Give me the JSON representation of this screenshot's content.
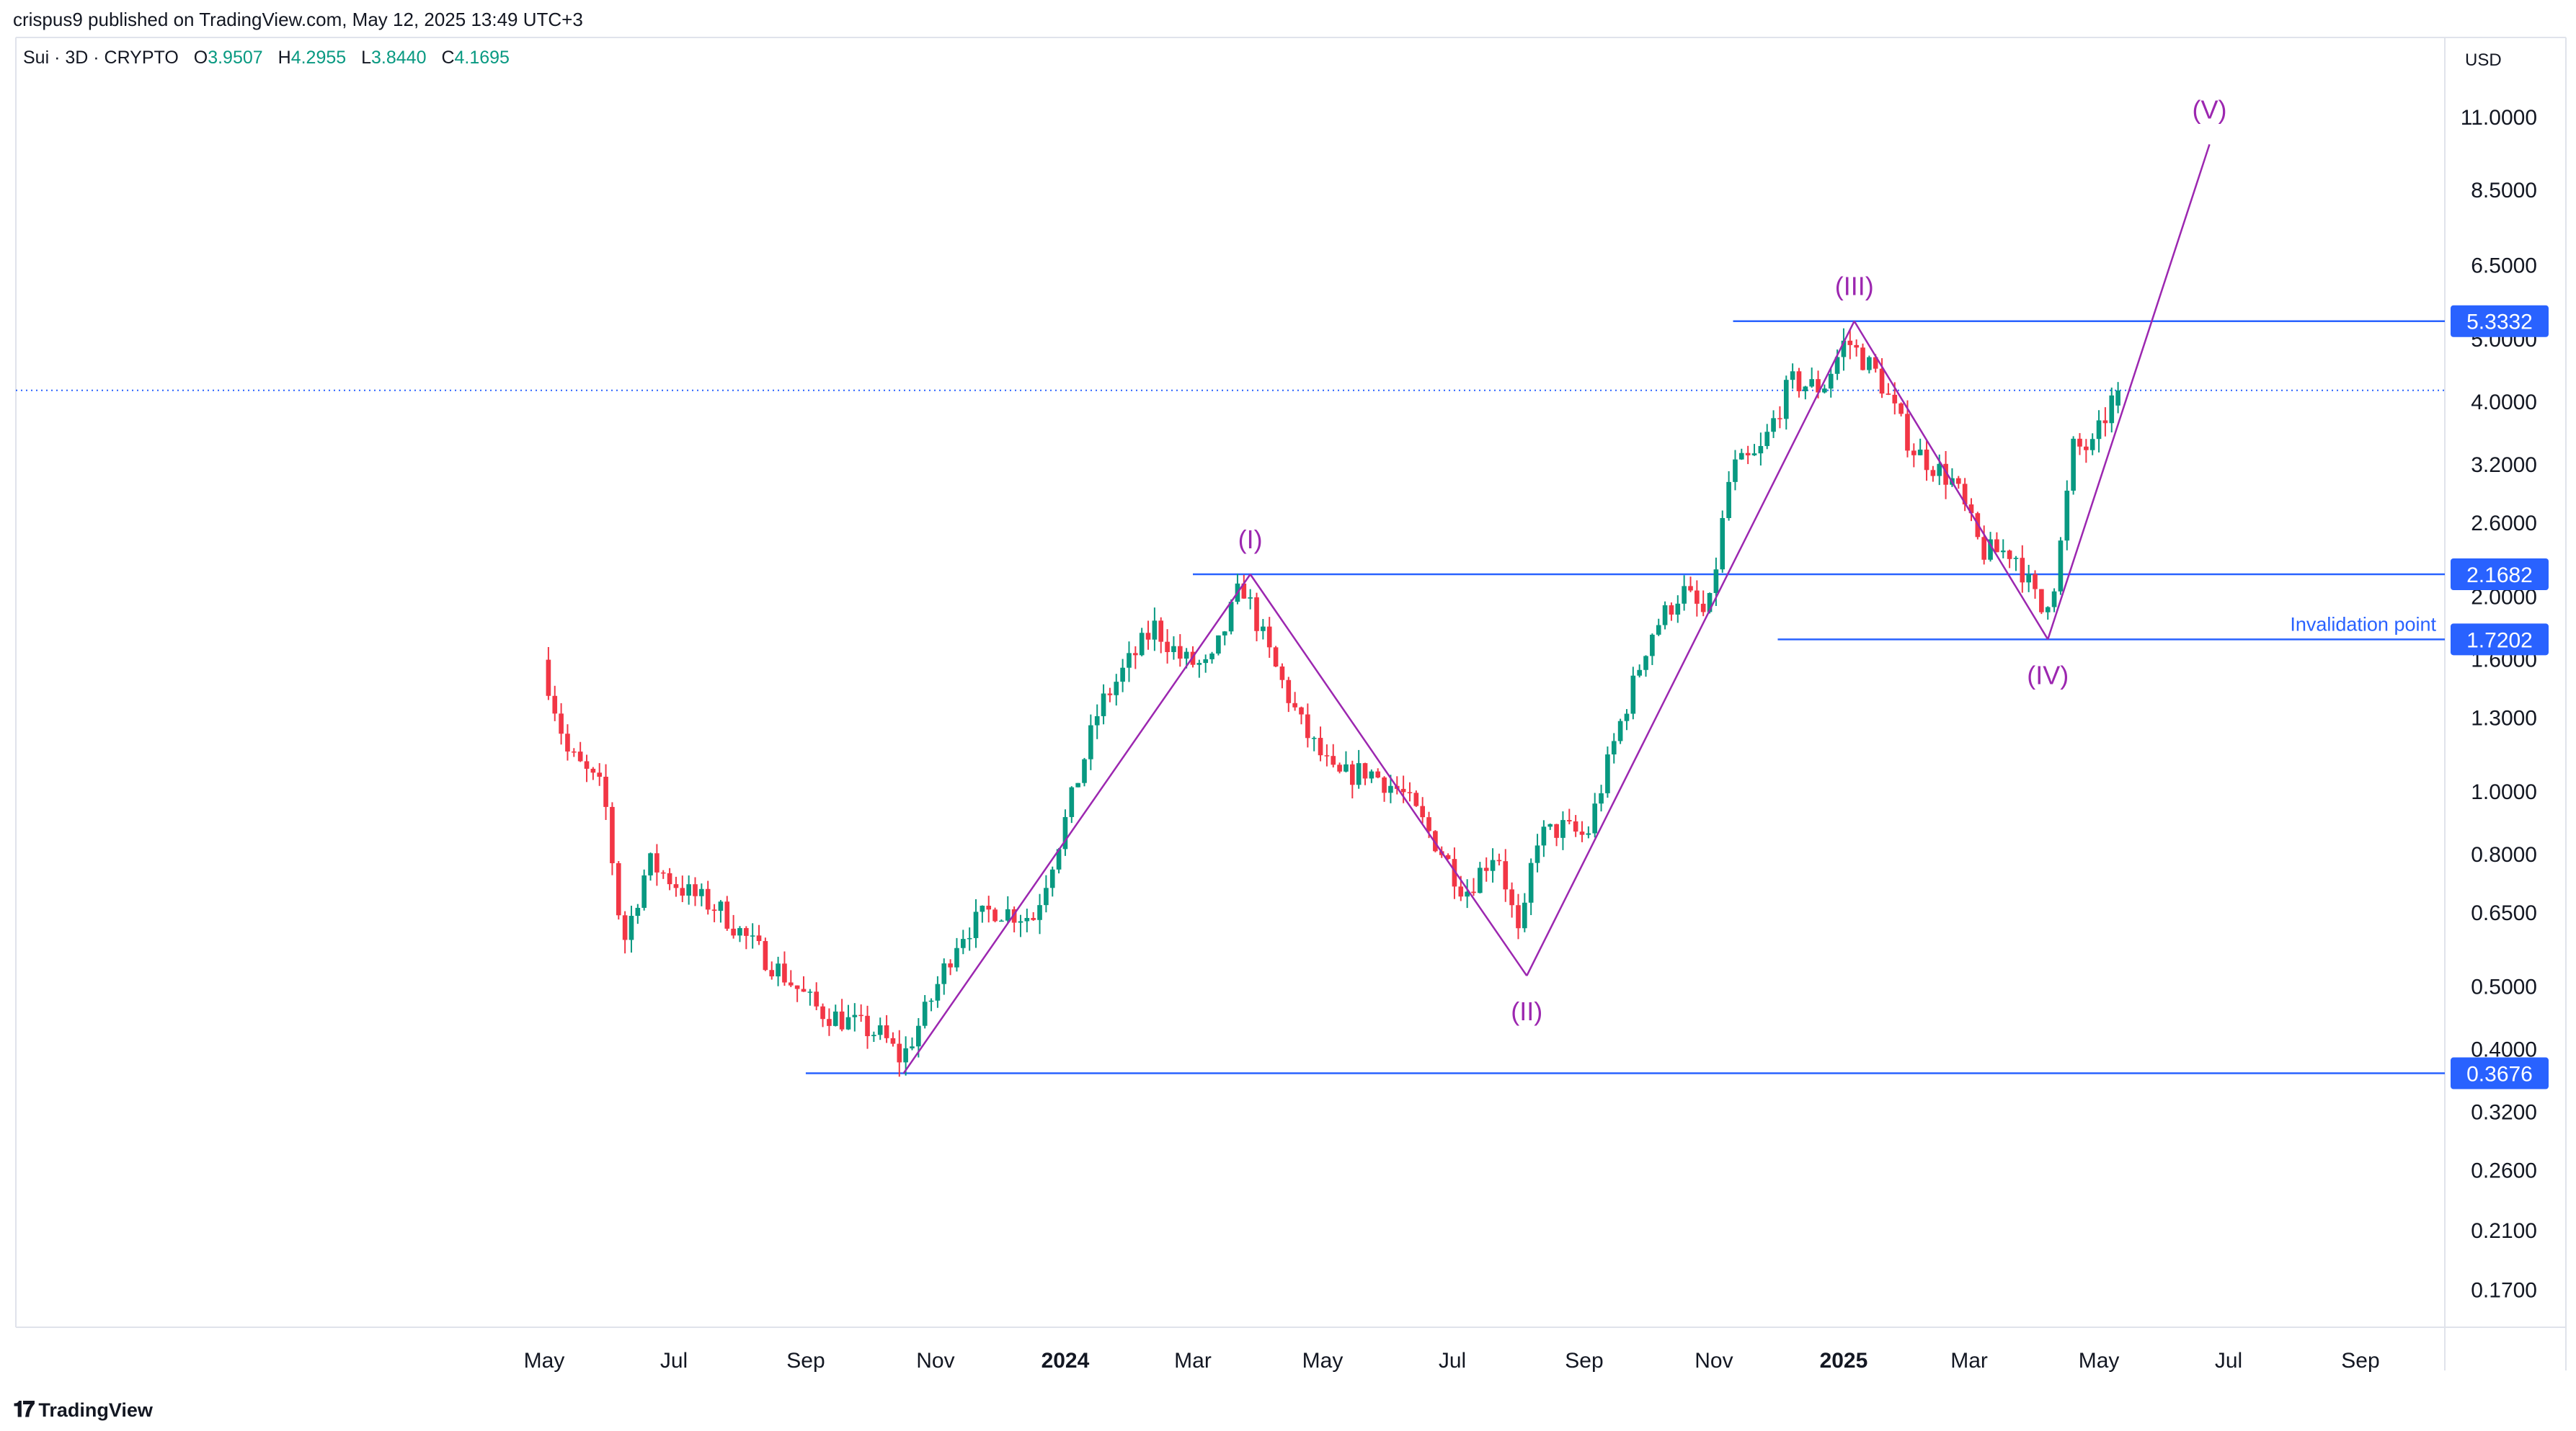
{
  "header": {
    "published": "crispus9 published on TradingView.com, May 12, 2025 13:49 UTC+3",
    "symbol": "Sui · 3D · CRYPTO",
    "ohlc": [
      {
        "label": "O",
        "value": "3.9507"
      },
      {
        "label": "H",
        "value": "4.2955"
      },
      {
        "label": "L",
        "value": "3.8440"
      },
      {
        "label": "C",
        "value": "4.1695"
      }
    ],
    "currency": "USD"
  },
  "footer": {
    "brand": "TradingView"
  },
  "colors": {
    "up": "#089981",
    "down": "#f23645",
    "level": "#2962ff",
    "wave": "#9c27b0",
    "dotted": "#2962ff",
    "axis_text": "#131722"
  },
  "chart_data": {
    "type": "candlestick",
    "scale": "log",
    "x_axis": {
      "range": [
        "2023-04-20",
        "2025-09-30"
      ],
      "tick_labels": [
        {
          "date": "2023-05-01",
          "label": "May",
          "bold": false
        },
        {
          "date": "2023-07-01",
          "label": "Jul",
          "bold": false
        },
        {
          "date": "2023-09-01",
          "label": "Sep",
          "bold": false
        },
        {
          "date": "2023-11-01",
          "label": "Nov",
          "bold": false
        },
        {
          "date": "2024-01-01",
          "label": "2024",
          "bold": true
        },
        {
          "date": "2024-03-01",
          "label": "Mar",
          "bold": false
        },
        {
          "date": "2024-05-01",
          "label": "May",
          "bold": false
        },
        {
          "date": "2024-07-01",
          "label": "Jul",
          "bold": false
        },
        {
          "date": "2024-09-01",
          "label": "Sep",
          "bold": false
        },
        {
          "date": "2024-11-01",
          "label": "Nov",
          "bold": false
        },
        {
          "date": "2025-01-01",
          "label": "2025",
          "bold": true
        },
        {
          "date": "2025-03-01",
          "label": "Mar",
          "bold": false
        },
        {
          "date": "2025-05-01",
          "label": "May",
          "bold": false
        },
        {
          "date": "2025-07-01",
          "label": "Jul",
          "bold": false
        },
        {
          "date": "2025-09-01",
          "label": "Sep",
          "bold": false
        }
      ]
    },
    "y_axis": {
      "range": [
        0.14,
        13.5
      ],
      "tick_labels": [
        {
          "value": 11,
          "label": "11.0000"
        },
        {
          "value": 8.5,
          "label": "8.5000"
        },
        {
          "value": 6.5,
          "label": "6.5000"
        },
        {
          "value": 5,
          "label": "5.0000"
        },
        {
          "value": 4,
          "label": "4.0000"
        },
        {
          "value": 3.2,
          "label": "3.2000"
        },
        {
          "value": 2.6,
          "label": "2.6000"
        },
        {
          "value": 2,
          "label": "2.0000"
        },
        {
          "value": 1.6,
          "label": "1.6000"
        },
        {
          "value": 1.3,
          "label": "1.3000"
        },
        {
          "value": 1,
          "label": "1.0000"
        },
        {
          "value": 0.8,
          "label": "0.8000"
        },
        {
          "value": 0.65,
          "label": "0.6500"
        },
        {
          "value": 0.5,
          "label": "0.5000"
        },
        {
          "value": 0.4,
          "label": "0.4000"
        },
        {
          "value": 0.32,
          "label": "0.3200"
        },
        {
          "value": 0.26,
          "label": "0.2600"
        },
        {
          "value": 0.21,
          "label": "0.2100"
        },
        {
          "value": 0.17,
          "label": "0.1700"
        }
      ]
    },
    "price_path": [
      {
        "date": "2023-05-03",
        "price": 1.6
      },
      {
        "date": "2023-05-15",
        "price": 1.15
      },
      {
        "date": "2023-06-01",
        "price": 1.0
      },
      {
        "date": "2023-06-10",
        "price": 0.58
      },
      {
        "date": "2023-06-22",
        "price": 0.78
      },
      {
        "date": "2023-07-10",
        "price": 0.7
      },
      {
        "date": "2023-07-25",
        "price": 0.66
      },
      {
        "date": "2023-08-10",
        "price": 0.58
      },
      {
        "date": "2023-08-25",
        "price": 0.52
      },
      {
        "date": "2023-09-10",
        "price": 0.46
      },
      {
        "date": "2023-09-25",
        "price": 0.44
      },
      {
        "date": "2023-10-10",
        "price": 0.42
      },
      {
        "date": "2023-10-19",
        "price": 0.385
      },
      {
        "date": "2023-11-01",
        "price": 0.47
      },
      {
        "date": "2023-11-15",
        "price": 0.6
      },
      {
        "date": "2023-12-01",
        "price": 0.66
      },
      {
        "date": "2023-12-20",
        "price": 0.64
      },
      {
        "date": "2024-01-03",
        "price": 0.88
      },
      {
        "date": "2024-01-20",
        "price": 1.35
      },
      {
        "date": "2024-02-01",
        "price": 1.55
      },
      {
        "date": "2024-02-15",
        "price": 1.8
      },
      {
        "date": "2024-02-28",
        "price": 1.6
      },
      {
        "date": "2024-03-12",
        "price": 1.55
      },
      {
        "date": "2024-03-27",
        "price": 2.1
      },
      {
        "date": "2024-04-10",
        "price": 1.6
      },
      {
        "date": "2024-04-25",
        "price": 1.25
      },
      {
        "date": "2024-05-10",
        "price": 1.05
      },
      {
        "date": "2024-05-25",
        "price": 1.08
      },
      {
        "date": "2024-06-10",
        "price": 1.0
      },
      {
        "date": "2024-06-28",
        "price": 0.82
      },
      {
        "date": "2024-07-10",
        "price": 0.7
      },
      {
        "date": "2024-07-25",
        "price": 0.82
      },
      {
        "date": "2024-08-05",
        "price": 0.58
      },
      {
        "date": "2024-08-12",
        "price": 0.85
      },
      {
        "date": "2024-08-25",
        "price": 0.88
      },
      {
        "date": "2024-09-05",
        "price": 0.85
      },
      {
        "date": "2024-09-20",
        "price": 1.25
      },
      {
        "date": "2024-10-05",
        "price": 1.75
      },
      {
        "date": "2024-10-20",
        "price": 2.05
      },
      {
        "date": "2024-11-01",
        "price": 1.85
      },
      {
        "date": "2024-11-12",
        "price": 3.15
      },
      {
        "date": "2024-11-25",
        "price": 3.3
      },
      {
        "date": "2024-12-10",
        "price": 4.3
      },
      {
        "date": "2024-12-25",
        "price": 4.2
      },
      {
        "date": "2025-01-05",
        "price": 5.0
      },
      {
        "date": "2025-01-20",
        "price": 4.4
      },
      {
        "date": "2025-02-05",
        "price": 3.4
      },
      {
        "date": "2025-02-25",
        "price": 3.0
      },
      {
        "date": "2025-03-10",
        "price": 2.35
      },
      {
        "date": "2025-03-25",
        "price": 2.35
      },
      {
        "date": "2025-04-07",
        "price": 1.9
      },
      {
        "date": "2025-04-14",
        "price": 2.15
      },
      {
        "date": "2025-04-22",
        "price": 3.4
      },
      {
        "date": "2025-05-01",
        "price": 3.4
      },
      {
        "date": "2025-05-12",
        "price": 4.17
      }
    ],
    "last_price": {
      "date": "2025-05-12",
      "open": 3.9507,
      "high": 4.2955,
      "low": 3.844,
      "close": 4.1695
    },
    "levels": [
      {
        "value": 5.3332,
        "label": "5.3332",
        "from": "2024-11-10",
        "note": ""
      },
      {
        "value": 2.1682,
        "label": "2.1682",
        "from": "2024-03-01",
        "note": ""
      },
      {
        "value": 1.7202,
        "label": "1.7202",
        "from": "2024-12-01",
        "note": "Invalidation point"
      },
      {
        "value": 0.3676,
        "label": "0.3676",
        "from": "2023-09-01",
        "note": ""
      }
    ],
    "current_price_line": 4.1695,
    "wave_path": [
      {
        "date": "2023-10-17",
        "price": 0.3676,
        "label": ""
      },
      {
        "date": "2024-03-28",
        "price": 2.1682,
        "label": "(I)"
      },
      {
        "date": "2024-08-05",
        "price": 0.52,
        "label": "(II)"
      },
      {
        "date": "2025-01-06",
        "price": 5.3332,
        "label": "(III)"
      },
      {
        "date": "2025-04-07",
        "price": 1.7202,
        "label": "(IV)"
      },
      {
        "date": "2025-06-22",
        "price": 10.0,
        "label": "(V)"
      }
    ]
  }
}
